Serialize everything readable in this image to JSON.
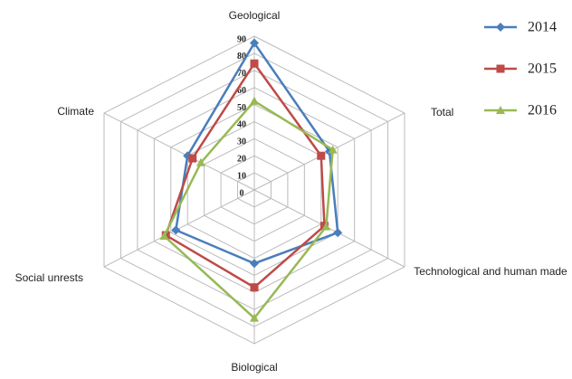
{
  "chart_data": {
    "type": "radar",
    "categories": [
      "Geological",
      "Total",
      "Technological and human made",
      "Biological",
      "Social unrests",
      "Climate"
    ],
    "series": [
      {
        "name": "2014",
        "color": "#4a7ebb",
        "marker": "diamond",
        "values": [
          86,
          45,
          50,
          43,
          47,
          40
        ]
      },
      {
        "name": "2015",
        "color": "#be4b48",
        "marker": "square",
        "values": [
          74,
          40,
          42,
          57,
          53,
          37
        ]
      },
      {
        "name": "2016",
        "color": "#98b954",
        "marker": "triangle",
        "values": [
          52,
          47,
          43,
          75,
          54,
          32
        ]
      }
    ],
    "ylim": [
      0,
      90
    ],
    "yticks": [
      0,
      10,
      20,
      30,
      40,
      50,
      60,
      70,
      80,
      90
    ],
    "grid": true,
    "legend": "right"
  }
}
